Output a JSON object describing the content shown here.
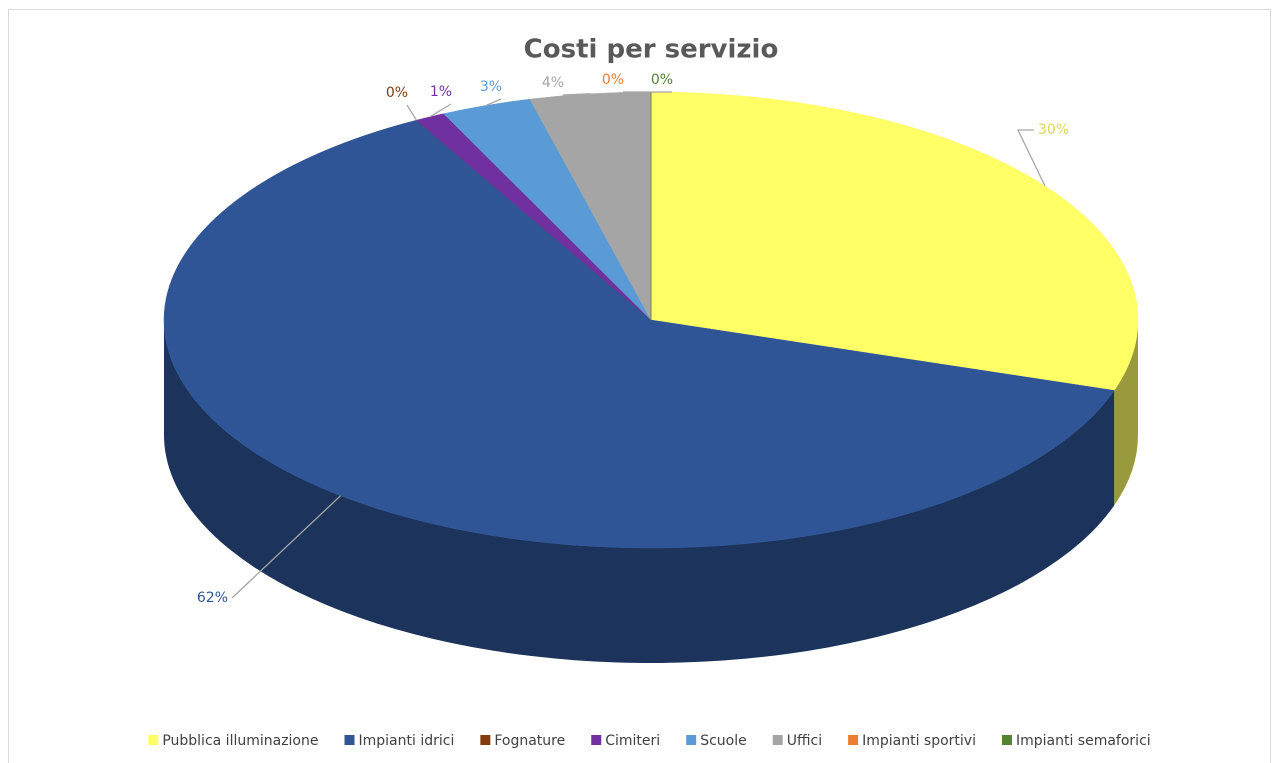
{
  "chart_data": {
    "type": "pie3d",
    "title": "Costi per servizio",
    "categories": [
      "Pubblica illuminazione",
      "Impianti idrici",
      "Fognature",
      "Cimiteri",
      "Scuole",
      "Uffici",
      "Impianti sportivi",
      "Impianti semaforici"
    ],
    "values": [
      30,
      62,
      0,
      1,
      3,
      4,
      0,
      0
    ],
    "value_labels": [
      "30%",
      "62%",
      "0%",
      "1%",
      "3%",
      "4%",
      "0%",
      "0%"
    ],
    "colors": [
      "#ffff66",
      "#2f5597",
      "#843c0c",
      "#7030a0",
      "#5b9bd5",
      "#a5a5a5",
      "#ed7d31",
      "#548235"
    ],
    "legend": "bottom"
  }
}
